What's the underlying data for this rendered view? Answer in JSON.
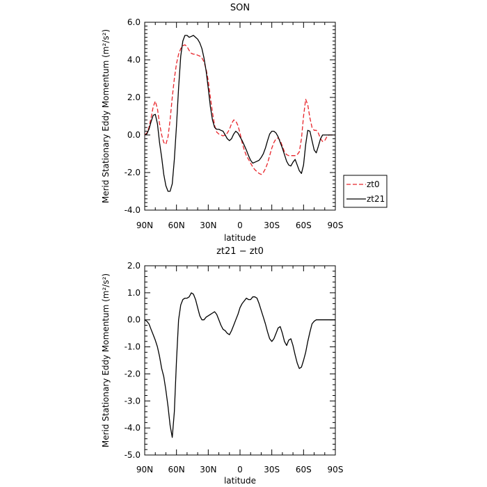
{
  "chart_data": [
    {
      "type": "line",
      "title": "SON",
      "xlabel": "latitude",
      "ylabel": "Merid Stationary Eddy Momentum (m²/s²)",
      "xlim": [
        90,
        -90
      ],
      "ylim": [
        -4.0,
        6.0
      ],
      "xticks": [
        "90N",
        "60N",
        "30N",
        "0",
        "30S",
        "60S",
        "90S"
      ],
      "xtick_values": [
        90,
        60,
        30,
        0,
        -30,
        -60,
        -90
      ],
      "yticks": [
        "-4.0",
        "-2.0",
        "0.0",
        "2.0",
        "4.0",
        "6.0"
      ],
      "ytick_values": [
        -4,
        -2,
        0,
        2,
        4,
        6
      ],
      "legend": {
        "placement": "right"
      },
      "series": [
        {
          "name": "zt0",
          "color": "#e8242a",
          "dash": "dashed",
          "x": [
            90,
            88,
            86,
            84,
            82,
            80,
            78,
            76,
            74,
            72,
            70,
            68,
            66,
            64,
            62,
            60,
            58,
            56,
            54,
            52,
            50,
            48,
            46,
            44,
            42,
            40,
            38,
            36,
            34,
            32,
            30,
            28,
            26,
            24,
            22,
            20,
            18,
            16,
            14,
            12,
            10,
            8,
            6,
            4,
            2,
            0,
            -2,
            -4,
            -6,
            -8,
            -10,
            -12,
            -14,
            -16,
            -18,
            -20,
            -22,
            -24,
            -26,
            -28,
            -30,
            -32,
            -34,
            -36,
            -38,
            -40,
            -42,
            -44,
            -46,
            -48,
            -50,
            -52,
            -54,
            -56,
            -58,
            -60,
            -62,
            -64,
            -66,
            -68,
            -70,
            -72,
            -74,
            -76,
            -78,
            -80,
            -82,
            -84,
            -86,
            -88,
            -90
          ],
          "y": [
            0.0,
            0.1,
            0.4,
            0.9,
            1.5,
            1.8,
            1.4,
            0.6,
            0.0,
            -0.4,
            -0.5,
            -0.1,
            0.8,
            2.0,
            3.0,
            3.8,
            4.3,
            4.6,
            4.75,
            4.8,
            4.7,
            4.5,
            4.35,
            4.3,
            4.3,
            4.25,
            4.2,
            4.1,
            3.9,
            3.5,
            2.9,
            2.0,
            1.2,
            0.5,
            0.15,
            0.05,
            0.0,
            -0.05,
            0.0,
            0.1,
            0.3,
            0.6,
            0.8,
            0.75,
            0.5,
            0.1,
            -0.4,
            -0.8,
            -1.1,
            -1.3,
            -1.5,
            -1.7,
            -1.85,
            -1.95,
            -2.05,
            -2.1,
            -2.0,
            -1.8,
            -1.5,
            -1.1,
            -0.7,
            -0.4,
            -0.2,
            -0.15,
            -0.3,
            -0.6,
            -0.9,
            -1.05,
            -1.1,
            -1.1,
            -1.1,
            -1.1,
            -1.05,
            -0.9,
            -0.2,
            1.0,
            1.9,
            1.6,
            0.9,
            0.4,
            0.25,
            0.25,
            0.1,
            -0.2,
            -0.35,
            -0.3,
            -0.1,
            0.0,
            0.0,
            0.0,
            0.0
          ]
        },
        {
          "name": "zt21",
          "color": "#000000",
          "dash": "solid",
          "x": [
            90,
            88,
            86,
            84,
            82,
            80,
            78,
            76,
            74,
            72,
            70,
            68,
            66,
            64,
            62,
            60,
            58,
            56,
            54,
            52,
            50,
            48,
            46,
            44,
            42,
            40,
            38,
            36,
            34,
            32,
            30,
            28,
            26,
            24,
            22,
            20,
            18,
            16,
            14,
            12,
            10,
            8,
            6,
            4,
            2,
            0,
            -2,
            -4,
            -6,
            -8,
            -10,
            -12,
            -14,
            -16,
            -18,
            -20,
            -22,
            -24,
            -26,
            -28,
            -30,
            -32,
            -34,
            -36,
            -38,
            -40,
            -42,
            -44,
            -46,
            -48,
            -50,
            -52,
            -54,
            -56,
            -58,
            -60,
            -62,
            -64,
            -66,
            -68,
            -70,
            -72,
            -74,
            -76,
            -78,
            -80,
            -82,
            -84,
            -86,
            -88,
            -90
          ],
          "y": [
            0.0,
            0.05,
            0.3,
            0.7,
            1.05,
            1.1,
            0.6,
            -0.4,
            -1.2,
            -2.1,
            -2.7,
            -3.0,
            -3.0,
            -2.6,
            -1.3,
            0.5,
            2.5,
            4.2,
            5.0,
            5.3,
            5.3,
            5.2,
            5.25,
            5.3,
            5.2,
            5.1,
            4.9,
            4.6,
            4.1,
            3.4,
            2.5,
            1.5,
            0.8,
            0.4,
            0.3,
            0.3,
            0.25,
            0.2,
            0.0,
            -0.2,
            -0.3,
            -0.2,
            0.05,
            0.2,
            0.1,
            -0.1,
            -0.3,
            -0.55,
            -0.8,
            -1.1,
            -1.35,
            -1.5,
            -1.45,
            -1.4,
            -1.35,
            -1.2,
            -1.0,
            -0.7,
            -0.3,
            0.05,
            0.2,
            0.2,
            0.1,
            -0.1,
            -0.4,
            -0.7,
            -1.05,
            -1.4,
            -1.6,
            -1.65,
            -1.45,
            -1.3,
            -1.6,
            -1.9,
            -2.05,
            -1.6,
            -0.5,
            0.25,
            0.2,
            -0.3,
            -0.8,
            -0.95,
            -0.6,
            -0.2,
            0.0,
            0.0,
            0.0,
            0.0,
            0.0,
            0.0,
            0.0
          ]
        }
      ]
    },
    {
      "type": "line",
      "title": "zt21 − zt0",
      "xlabel": "latitude",
      "ylabel": "Merid Stationary Eddy Momentum (m²/s²)",
      "xlim": [
        90,
        -90
      ],
      "ylim": [
        -5.0,
        2.0
      ],
      "xticks": [
        "90N",
        "60N",
        "30N",
        "0",
        "30S",
        "60S",
        "90S"
      ],
      "xtick_values": [
        90,
        60,
        30,
        0,
        -30,
        -60,
        -90
      ],
      "yticks": [
        "-5.0",
        "-4.0",
        "-3.0",
        "-2.0",
        "-1.0",
        "0.0",
        "1.0",
        "2.0"
      ],
      "ytick_values": [
        -5,
        -4,
        -3,
        -2,
        -1,
        0,
        1,
        2
      ],
      "series": [
        {
          "color": "#000000",
          "dash": "solid",
          "x": [
            90,
            88,
            86,
            84,
            82,
            80,
            78,
            76,
            74,
            72,
            70,
            68,
            66,
            64,
            62,
            60,
            58,
            56,
            54,
            52,
            50,
            48,
            46,
            44,
            42,
            40,
            38,
            36,
            34,
            32,
            30,
            28,
            26,
            24,
            22,
            20,
            18,
            16,
            14,
            12,
            10,
            8,
            6,
            4,
            2,
            0,
            -2,
            -4,
            -6,
            -8,
            -10,
            -12,
            -14,
            -16,
            -18,
            -20,
            -22,
            -24,
            -26,
            -28,
            -30,
            -32,
            -34,
            -36,
            -38,
            -40,
            -42,
            -44,
            -46,
            -48,
            -50,
            -52,
            -54,
            -56,
            -58,
            -60,
            -62,
            -64,
            -66,
            -68,
            -70,
            -72,
            -74,
            -76,
            -78,
            -80,
            -82,
            -84,
            -86,
            -88,
            -90
          ],
          "y": [
            0.0,
            -0.05,
            -0.15,
            -0.35,
            -0.55,
            -0.75,
            -1.0,
            -1.35,
            -1.8,
            -2.1,
            -2.6,
            -3.2,
            -3.9,
            -4.35,
            -3.4,
            -1.5,
            0.0,
            0.55,
            0.75,
            0.8,
            0.8,
            0.85,
            1.0,
            0.95,
            0.75,
            0.45,
            0.15,
            0.0,
            0.0,
            0.1,
            0.15,
            0.2,
            0.25,
            0.3,
            0.2,
            0.0,
            -0.2,
            -0.35,
            -0.4,
            -0.5,
            -0.55,
            -0.4,
            -0.2,
            0.0,
            0.2,
            0.45,
            0.6,
            0.7,
            0.8,
            0.75,
            0.75,
            0.85,
            0.85,
            0.8,
            0.6,
            0.35,
            0.1,
            -0.15,
            -0.45,
            -0.7,
            -0.8,
            -0.7,
            -0.5,
            -0.3,
            -0.25,
            -0.5,
            -0.8,
            -0.95,
            -0.75,
            -0.7,
            -0.95,
            -1.3,
            -1.6,
            -1.8,
            -1.75,
            -1.5,
            -1.2,
            -0.8,
            -0.45,
            -0.15,
            -0.05,
            0.0,
            0.0,
            0.0,
            0.0,
            0.0,
            0.0,
            0.0,
            0.0,
            0.0,
            0.0
          ]
        }
      ]
    }
  ]
}
